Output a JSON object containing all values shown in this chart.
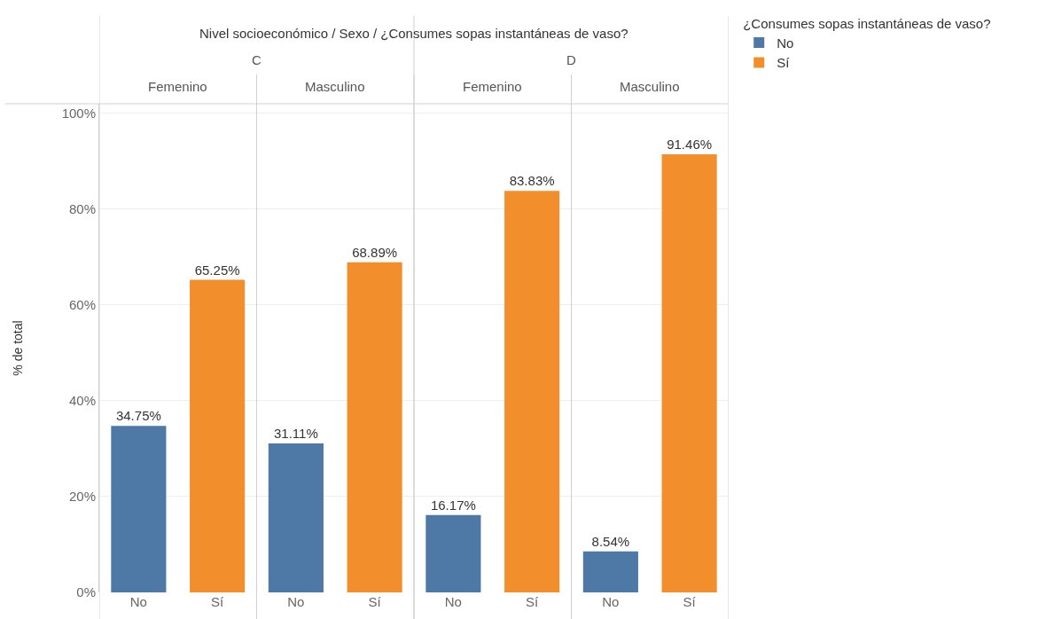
{
  "chart_data": {
    "type": "bar",
    "title": "Nivel socioeconómico / Sexo / ¿Consumes sopas instantáneas de vaso?",
    "ylabel": "% de total",
    "legend_title": "¿Consumes sopas instantáneas de vaso?",
    "categories": [
      "No",
      "Sí",
      "No",
      "Sí",
      "No",
      "Sí",
      "No",
      "Sí"
    ],
    "annotations": [
      "C",
      "D",
      "Femenino",
      "Masculino",
      "Femenino",
      "Masculino"
    ],
    "series": [
      {
        "name": "No",
        "color": "#4e79a7",
        "values": [
          34.75,
          null,
          31.11,
          null,
          16.17,
          null,
          8.54,
          null
        ],
        "value_labels": [
          "34.75%",
          null,
          "31.11%",
          null,
          "16.17%",
          null,
          "8.54%",
          null
        ]
      },
      {
        "name": "Sí",
        "color": "#f28e2b",
        "values": [
          null,
          65.25,
          null,
          68.89,
          null,
          83.83,
          null,
          91.46
        ],
        "value_labels": [
          null,
          "65.25%",
          null,
          "68.89%",
          null,
          "83.83%",
          null,
          "91.46%"
        ]
      }
    ],
    "ylim": [
      0,
      102
    ],
    "yticks": [
      {
        "value": 0,
        "label": "0%"
      },
      {
        "value": 20,
        "label": "20%"
      },
      {
        "value": 40,
        "label": "40%"
      },
      {
        "value": 60,
        "label": "60%"
      },
      {
        "value": 80,
        "label": "80%"
      },
      {
        "value": 100,
        "label": "100%"
      }
    ],
    "grid": "y",
    "legend": "top right"
  }
}
